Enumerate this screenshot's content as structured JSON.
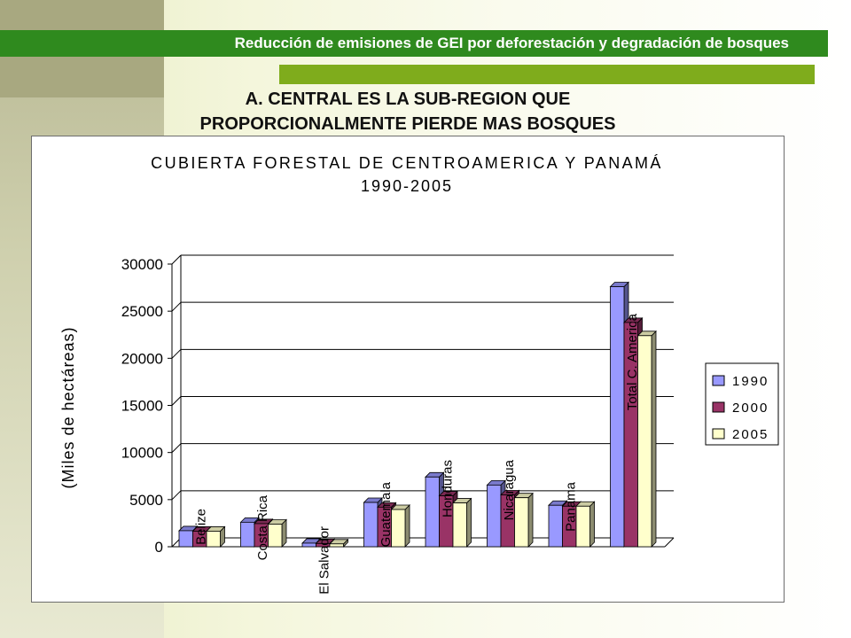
{
  "header": {
    "title": "Reducción de emisiones de GEI por deforestación y degradación de bosques"
  },
  "slide": {
    "title_line1": "A. CENTRAL ES LA SUB-REGION QUE",
    "title_line2": "PROPORCIONALMENTE PIERDE MAS BOSQUES"
  },
  "colors": {
    "header_green": "#2f8a1e",
    "accent_green": "#7fac1c",
    "s1990": "#9999ff",
    "s2000": "#993366",
    "s2005": "#ffffcc"
  },
  "chart_data": {
    "type": "bar",
    "title": "CUBIERTA FORESTAL DE CENTROAMERICA Y PANAMÁ",
    "subtitle": "1990-2005",
    "ylabel": "(Miles de hectáreas)",
    "ylim": [
      0,
      30000
    ],
    "yticks": [
      "0",
      "5000",
      "10000",
      "15000",
      "20000",
      "25000",
      "30000"
    ],
    "grid": true,
    "legend_position": "right",
    "categories": [
      "Belize",
      "Costa Rica",
      "El Salvador",
      "Guatemala",
      "Honduras",
      "Nicaragua",
      "Panama",
      "Total C. America"
    ],
    "series": [
      {
        "name": "1990",
        "color": "#9999ff",
        "values": [
          1700,
          2600,
          380,
          4700,
          7400,
          6550,
          4400,
          27600
        ]
      },
      {
        "name": "2000",
        "color": "#993366",
        "values": [
          1650,
          2450,
          340,
          4200,
          5400,
          5500,
          4300,
          23800
        ]
      },
      {
        "name": "2005",
        "color": "#ffffcc",
        "values": [
          1650,
          2400,
          300,
          3950,
          4650,
          5200,
          4300,
          22400
        ]
      }
    ]
  }
}
